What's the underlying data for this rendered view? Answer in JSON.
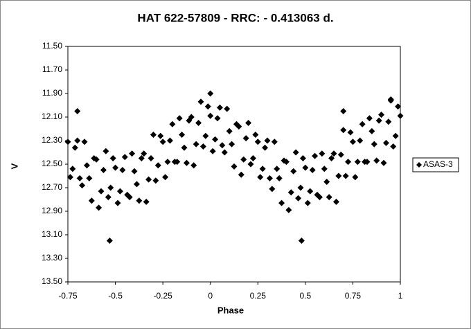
{
  "chart_data": {
    "type": "scatter",
    "title": "HAT 622-57809 - RRC: - 0.413063 d.",
    "x_label": "Phase",
    "y_label": "V",
    "xlim": [
      -0.75,
      1
    ],
    "ylim": [
      11.5,
      13.5
    ],
    "y_inverted": true,
    "xticks": [
      -0.75,
      -0.5,
      -0.25,
      0,
      0.25,
      0.5,
      0.75,
      1
    ],
    "yticks": [
      {
        "value": 11.5,
        "label": "11.50"
      },
      {
        "value": 11.7,
        "label": "11.70"
      },
      {
        "value": 11.9,
        "label": "11.90"
      },
      {
        "value": 12.1,
        "label": "12.10"
      },
      {
        "value": 12.3,
        "label": "12.30"
      },
      {
        "value": 12.5,
        "label": "12.50"
      },
      {
        "value": 12.7,
        "label": "12.70"
      },
      {
        "value": 12.9,
        "label": "12.90"
      },
      {
        "value": 13.1,
        "label": "13.10"
      },
      {
        "value": 13.3,
        "label": "13.30"
      },
      {
        "value": 13.5,
        "label": "13.50"
      }
    ],
    "grid": false,
    "legend": "right",
    "series": [
      {
        "name": "ASAS-3",
        "color": "#000000",
        "x": [
          -0.75,
          -0.7375,
          -0.725,
          -0.7125,
          -0.7,
          -0.6875,
          -0.675,
          -0.6625,
          -0.65,
          -0.6375,
          -0.625,
          -0.6125,
          -0.6,
          -0.5875,
          -0.575,
          -0.5625,
          -0.55,
          -0.5375,
          -0.525,
          -0.5125,
          -0.5,
          -0.4875,
          -0.475,
          -0.4625,
          -0.45,
          -0.4375,
          -0.425,
          -0.4125,
          -0.4,
          -0.3875,
          -0.375,
          -0.3625,
          -0.35,
          -0.3375,
          -0.325,
          -0.3125,
          -0.3,
          -0.2875,
          -0.275,
          -0.2625,
          -0.25,
          -0.2375,
          -0.225,
          -0.2125,
          -0.2,
          -0.1875,
          -0.175,
          -0.1625,
          -0.15,
          -0.1375,
          -0.125,
          -0.1125,
          -0.1,
          -0.0875,
          -0.075,
          -0.0625,
          -0.05,
          -0.0375,
          -0.025,
          -0.0125,
          0,
          0.0125,
          0.025,
          0.0375,
          0.05,
          0.0625,
          0.075,
          0.0875,
          0.1,
          0.1125,
          0.125,
          0.1375,
          0.15,
          0.1625,
          0.175,
          0.1875,
          0.2,
          0.2125,
          0.225,
          0.2375,
          0.25,
          0.2625,
          0.275,
          0.2875,
          0.3,
          0.3125,
          0.325,
          0.3375,
          0.35,
          0.3625,
          0.375,
          0.3875,
          0.4,
          0.4125,
          0.425,
          0.4375,
          0.45,
          0.4625,
          0.475,
          0.4875,
          0.5,
          0.5125,
          0.525,
          0.5375,
          0.55,
          0.5625,
          0.575,
          0.5875,
          0.6,
          0.6125,
          0.625,
          0.6375,
          0.65,
          0.6625,
          0.675,
          0.6875,
          0.7,
          0.7125,
          0.725,
          0.7375,
          0.75,
          0.7625,
          0.775,
          0.7875,
          0.8,
          0.8125,
          0.825,
          0.8375,
          0.85,
          0.8625,
          0.875,
          0.8875,
          0.9,
          0.9125,
          0.925,
          0.9375,
          0.95,
          0.9625,
          0.975,
          0.9875,
          1,
          -0.53,
          0.48,
          -0.7,
          0.7,
          0.95,
          0
        ],
        "values": [
          12.31,
          12.61,
          12.54,
          12.36,
          12.3,
          12.62,
          12.68,
          12.31,
          12.51,
          12.62,
          12.81,
          12.45,
          12.46,
          12.87,
          12.73,
          12.55,
          12.39,
          12.78,
          12.7,
          12.45,
          12.53,
          12.83,
          12.73,
          12.55,
          12.44,
          12.76,
          12.78,
          12.41,
          12.56,
          12.67,
          12.81,
          12.45,
          12.41,
          12.82,
          12.63,
          12.45,
          12.25,
          12.64,
          12.51,
          12.26,
          12.31,
          12.61,
          12.48,
          12.3,
          12.16,
          12.48,
          12.48,
          12.11,
          12.25,
          12.36,
          12.49,
          12.13,
          12.1,
          12.51,
          12.33,
          12.15,
          11.97,
          12.35,
          12.26,
          12.01,
          12.09,
          12.39,
          12.29,
          12.11,
          12.02,
          12.34,
          12.4,
          12.03,
          12.22,
          12.33,
          12.52,
          12.16,
          12.18,
          12.59,
          12.46,
          12.28,
          12.15,
          12.5,
          12.45,
          12.25,
          12.31,
          12.61,
          12.54,
          12.36,
          12.3,
          12.62,
          12.71,
          12.31,
          12.54,
          12.62,
          12.83,
          12.47,
          12.48,
          12.89,
          12.74,
          12.56,
          12.4,
          12.79,
          12.7,
          12.45,
          12.53,
          12.83,
          12.73,
          12.55,
          12.43,
          12.76,
          12.78,
          12.41,
          12.54,
          12.65,
          12.78,
          12.45,
          12.41,
          12.82,
          12.6,
          12.42,
          12.21,
          12.6,
          12.48,
          12.23,
          12.31,
          12.61,
          12.48,
          12.3,
          12.16,
          12.48,
          12.48,
          12.11,
          12.22,
          12.33,
          12.47,
          12.13,
          12.08,
          12.49,
          12.32,
          12.14,
          11.96,
          12.35,
          12.26,
          12.01,
          12.09,
          13.15,
          13.15,
          12.05,
          12.05,
          11.95,
          11.9
        ]
      }
    ]
  }
}
